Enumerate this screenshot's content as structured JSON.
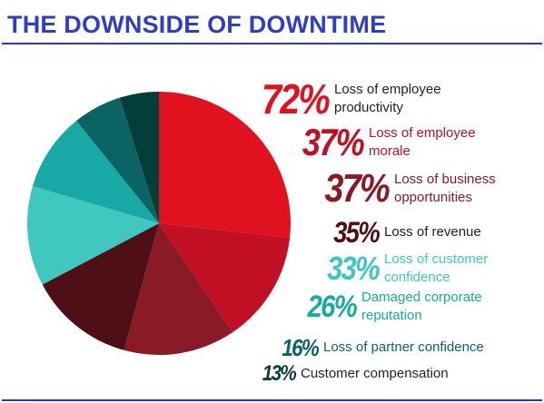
{
  "header": {
    "title": "THE DOWNSIDE OF DOWNTIME"
  },
  "colors": {
    "title": "#2f3fbf",
    "rule": "#2b3bb5"
  },
  "chart_data": {
    "type": "pie",
    "title": "THE DOWNSIDE OF DOWNTIME",
    "categories": [
      "Loss of employee productivity",
      "Loss of employee morale",
      "Loss of business opportunities",
      "Loss of revenue",
      "Loss of customer confidence",
      "Damaged corporate reputation",
      "Loss of partner confidence",
      "Customer compensation"
    ],
    "values": [
      72,
      37,
      37,
      35,
      33,
      26,
      16,
      13
    ],
    "value_labels": [
      "72%",
      "37%",
      "37%",
      "35%",
      "33%",
      "26%",
      "16%",
      "13%"
    ],
    "label_lines": [
      [
        "Loss of employee",
        "productivity"
      ],
      [
        "Loss of employee",
        "morale"
      ],
      [
        "Loss of business",
        "opportunities"
      ],
      [
        "Loss of revenue"
      ],
      [
        "Loss of customer",
        "confidence"
      ],
      [
        "Damaged corporate",
        "reputation"
      ],
      [
        "Loss of partner confidence"
      ],
      [
        "Customer compensation"
      ]
    ],
    "slice_colors": [
      "#e0121f",
      "#c10f24",
      "#8a1a25",
      "#4e1016",
      "#3fc7c0",
      "#18a9a6",
      "#0b6463",
      "#053d3b"
    ],
    "pct_colors": [
      "#e0121f",
      "#c10f24",
      "#8a1a25",
      "#4e1016",
      "#3fc7c0",
      "#18a9a6",
      "#0b6463",
      "#053d3b"
    ],
    "label_colors": [
      "#222222",
      "#c10f24",
      "#8a1a25",
      "#222222",
      "#3fc7c0",
      "#18a9a6",
      "#0b6463",
      "#222222"
    ],
    "legend": "right"
  }
}
